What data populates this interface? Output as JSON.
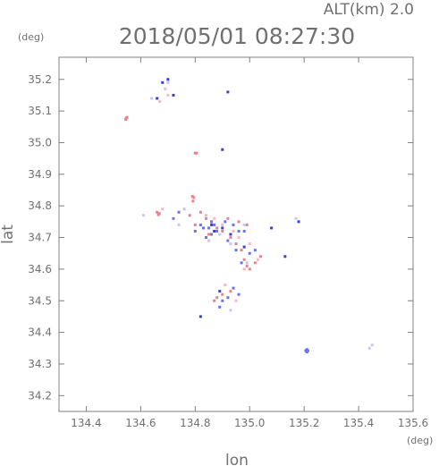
{
  "chart_data": {
    "type": "scatter",
    "title": "2018/05/01 08:27:30",
    "top_right_label": "ALT(km)  2.0",
    "xlabel": "lon",
    "ylabel": "lat",
    "x_unit": "(deg)",
    "y_unit": "(deg)",
    "xlim": [
      134.3,
      135.6
    ],
    "ylim": [
      34.15,
      35.27
    ],
    "xticks": [
      "134.4",
      "134.6",
      "134.8",
      "135.0",
      "135.2",
      "135.4",
      "135.6"
    ],
    "yticks": [
      "34.2",
      "34.3",
      "34.4",
      "34.5",
      "34.6",
      "34.7",
      "34.8",
      "34.9",
      "35.0",
      "35.1",
      "35.2"
    ],
    "grid": false,
    "colors": {
      "frame": "#808080",
      "text": "#707070",
      "red": "#e8838d",
      "blue": "#6a72f0",
      "dark_blue": "#3a3fd0",
      "pink": "#f3b9c3",
      "lilac": "#c9c6f0"
    },
    "series": [
      {
        "color": "red",
        "points": [
          [
            134.547,
            35.077
          ],
          [
            134.55,
            35.08
          ],
          [
            134.545,
            35.073
          ],
          [
            134.805,
            34.967
          ],
          [
            134.8,
            34.967
          ],
          [
            134.79,
            34.83
          ],
          [
            134.795,
            34.826
          ],
          [
            134.792,
            34.815
          ],
          [
            134.66,
            34.78
          ],
          [
            134.668,
            34.776
          ],
          [
            134.665,
            34.772
          ],
          [
            134.82,
            34.78
          ],
          [
            134.84,
            34.76
          ],
          [
            134.86,
            34.75
          ],
          [
            134.88,
            34.73
          ],
          [
            134.9,
            34.72
          ],
          [
            134.93,
            34.7
          ],
          [
            134.95,
            34.68
          ],
          [
            134.97,
            34.66
          ],
          [
            134.98,
            34.63
          ],
          [
            134.99,
            34.61
          ],
          [
            135.0,
            34.6
          ],
          [
            135.02,
            34.62
          ],
          [
            134.96,
            34.75
          ],
          [
            134.99,
            34.74
          ],
          [
            135.04,
            34.64
          ],
          [
            134.88,
            34.51
          ],
          [
            134.9,
            34.52
          ],
          [
            134.93,
            34.53
          ],
          [
            134.87,
            34.5
          ],
          [
            134.92,
            34.76
          ],
          [
            134.85,
            34.71
          ],
          [
            134.78,
            34.77
          ],
          [
            134.8,
            34.74
          ]
        ]
      },
      {
        "color": "blue",
        "points": [
          [
            135.21,
            34.342
          ],
          [
            135.214,
            34.342
          ],
          [
            135.206,
            34.342
          ],
          [
            135.21,
            34.346
          ],
          [
            135.21,
            34.338
          ],
          [
            134.86,
            34.75
          ],
          [
            134.87,
            34.74
          ],
          [
            134.88,
            34.72
          ],
          [
            134.85,
            34.73
          ],
          [
            134.84,
            34.7
          ],
          [
            134.86,
            34.71
          ],
          [
            134.91,
            34.75
          ],
          [
            134.94,
            34.74
          ],
          [
            134.96,
            34.72
          ],
          [
            134.98,
            34.72
          ],
          [
            134.92,
            34.69
          ],
          [
            134.95,
            34.66
          ],
          [
            134.97,
            34.62
          ],
          [
            135.0,
            34.65
          ],
          [
            135.02,
            34.66
          ],
          [
            134.89,
            34.48
          ],
          [
            134.9,
            34.5
          ],
          [
            134.92,
            34.51
          ],
          [
            134.94,
            34.54
          ],
          [
            134.96,
            34.52
          ],
          [
            134.72,
            34.76
          ],
          [
            134.74,
            34.78
          ],
          [
            134.8,
            34.72
          ],
          [
            134.82,
            34.74
          ],
          [
            134.83,
            34.73
          ]
        ]
      },
      {
        "color": "dark_blue",
        "points": [
          [
            134.87,
            34.72
          ],
          [
            134.86,
            34.74
          ],
          [
            134.9,
            34.73
          ],
          [
            134.93,
            34.71
          ],
          [
            134.98,
            34.67
          ],
          [
            134.89,
            34.53
          ],
          [
            134.82,
            34.45
          ],
          [
            134.9,
            34.978
          ],
          [
            134.92,
            35.16
          ],
          [
            135.08,
            34.73
          ],
          [
            135.13,
            34.64
          ],
          [
            135.18,
            34.75
          ],
          [
            134.68,
            35.19
          ],
          [
            134.7,
            35.2
          ],
          [
            134.66,
            35.14
          ],
          [
            134.72,
            35.15
          ]
        ]
      },
      {
        "color": "pink",
        "points": [
          [
            134.84,
            34.77
          ],
          [
            134.87,
            34.76
          ],
          [
            134.9,
            34.74
          ],
          [
            134.94,
            34.72
          ],
          [
            134.96,
            34.7
          ],
          [
            135.0,
            34.68
          ],
          [
            135.03,
            34.63
          ],
          [
            134.91,
            34.55
          ],
          [
            134.95,
            34.5
          ],
          [
            134.68,
            34.79
          ],
          [
            134.76,
            34.79
          ],
          [
            134.98,
            34.6
          ],
          [
            134.7,
            35.15
          ],
          [
            134.69,
            35.17
          ],
          [
            134.67,
            35.13
          ]
        ]
      },
      {
        "color": "lilac",
        "points": [
          [
            134.85,
            34.69
          ],
          [
            134.89,
            34.71
          ],
          [
            134.93,
            34.68
          ],
          [
            134.99,
            34.62
          ],
          [
            134.93,
            34.47
          ],
          [
            135.45,
            34.36
          ],
          [
            135.44,
            34.35
          ],
          [
            134.61,
            34.77
          ],
          [
            134.74,
            34.74
          ],
          [
            134.98,
            34.74
          ],
          [
            134.7,
            35.19
          ],
          [
            134.64,
            35.14
          ],
          [
            134.76,
            34.79
          ],
          [
            135.17,
            34.76
          ]
        ]
      }
    ]
  }
}
